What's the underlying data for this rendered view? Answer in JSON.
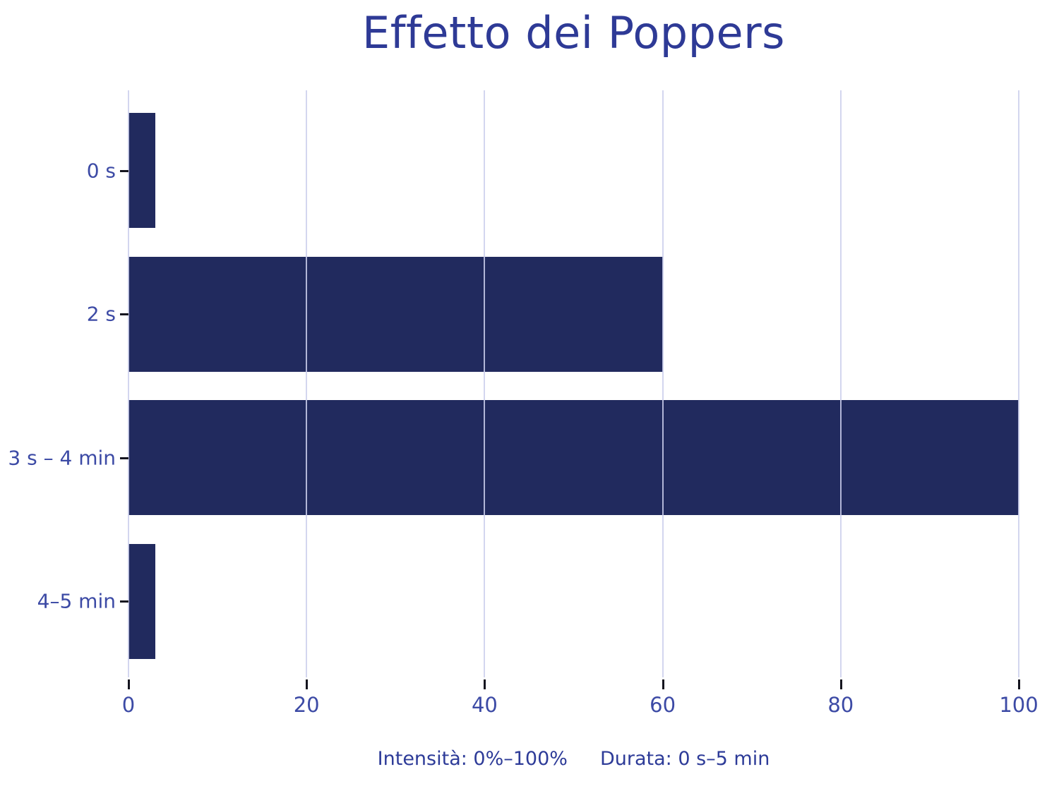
{
  "title": "Effetto dei Poppers",
  "chart_data": {
    "type": "bar",
    "orientation": "horizontal",
    "categories": [
      "0 s",
      "2 s",
      "3 s – 4 min",
      "4–5 min"
    ],
    "values": [
      3,
      60,
      100,
      3
    ],
    "title": "Effetto dei Poppers",
    "xlabel": "",
    "ylabel": "",
    "xticks": [
      0,
      20,
      40,
      60,
      80,
      100
    ],
    "xlim": [
      0,
      100
    ],
    "grid": "vertical-only",
    "legend": "none",
    "bar_color": "#212a5e",
    "grid_color": "#cbcfec",
    "tick_label_color": "#3c4aa5",
    "title_color": "#2e3a96"
  },
  "footnote": {
    "intensity": "Intensità: 0%–100%",
    "duration": "Durata: 0 s–5 min"
  }
}
